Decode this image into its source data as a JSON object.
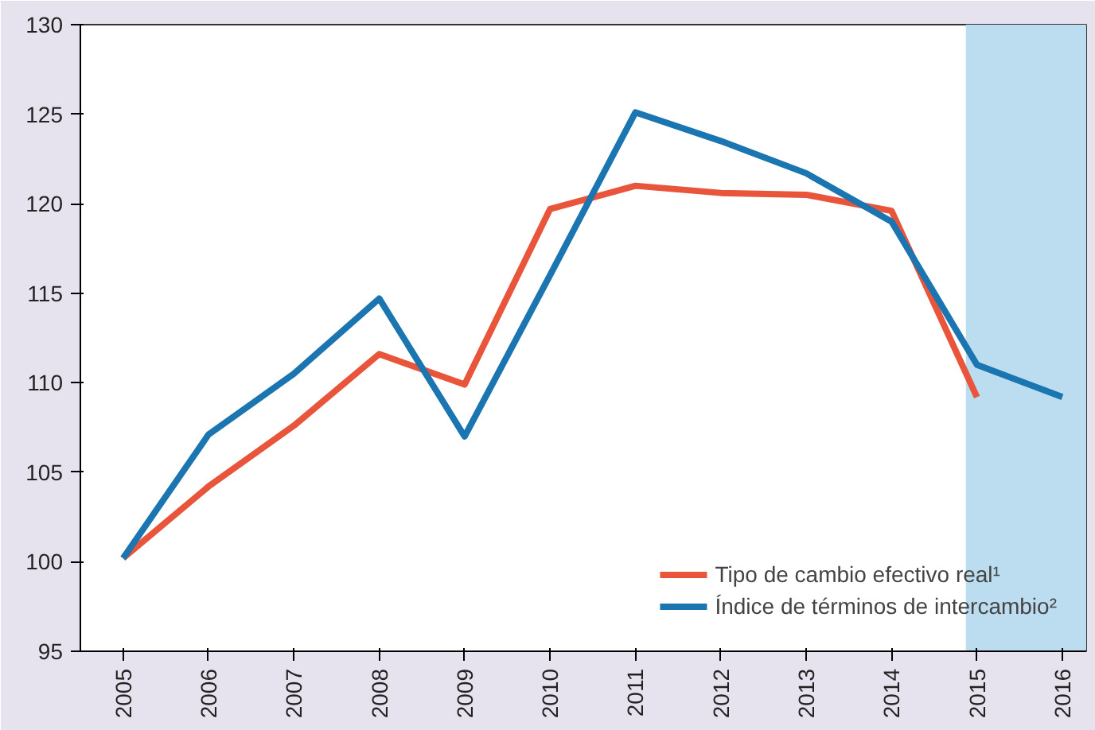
{
  "chart_data": {
    "type": "line",
    "x": [
      2005,
      2006,
      2007,
      2008,
      2009,
      2010,
      2011,
      2012,
      2013,
      2014,
      2015,
      2016
    ],
    "series": [
      {
        "name": "Tipo de cambio efectivo real¹",
        "color": "#e8553a",
        "values": [
          100.2,
          104.2,
          107.6,
          111.6,
          109.9,
          119.7,
          121.0,
          120.6,
          120.5,
          119.6,
          109.2,
          null
        ]
      },
      {
        "name": "Índice de términos de intercambio²",
        "color": "#1a75b0",
        "values": [
          100.2,
          107.1,
          110.5,
          114.7,
          107.0,
          116.0,
          125.1,
          123.5,
          121.7,
          119.0,
          111.0,
          109.2
        ]
      }
    ],
    "xlim": [
      2004.5,
      2016.28
    ],
    "xticks": [
      2005,
      2006,
      2007,
      2008,
      2009,
      2010,
      2011,
      2012,
      2013,
      2014,
      2015,
      2016
    ],
    "ylim": [
      95,
      130
    ],
    "yticks": [
      95,
      100,
      105,
      110,
      115,
      120,
      125,
      130
    ],
    "bands": [
      {
        "axis": "x",
        "from": 2014.87,
        "to": 2016.28,
        "color": "#bcdcef"
      }
    ],
    "grid": false,
    "legend": "bottom right",
    "marker": "none",
    "line_style": "solid"
  }
}
